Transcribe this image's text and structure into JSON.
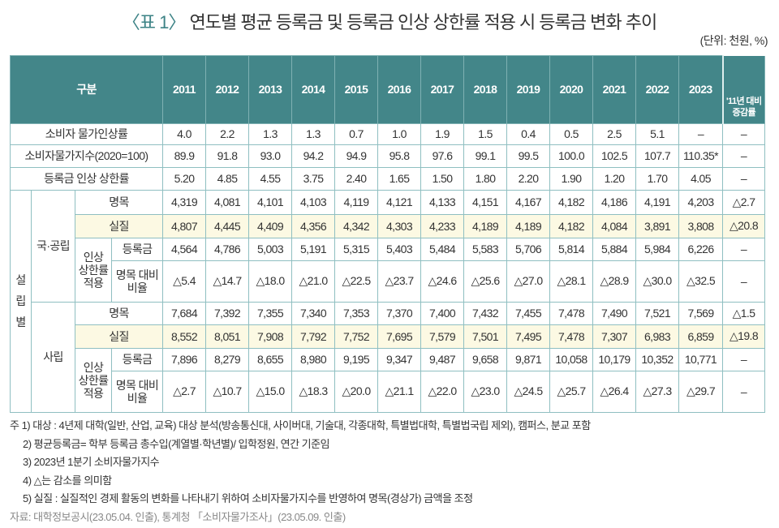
{
  "title": {
    "prefix": "〈표 1〉",
    "text": "연도별 평균 등록금 및 등록금 인상 상한률 적용 시 등록금 변화 추이"
  },
  "unit": "(단위: 천원, %)",
  "header": {
    "group": "구분",
    "years": [
      "2011",
      "2012",
      "2013",
      "2014",
      "2015",
      "2016",
      "2017",
      "2018",
      "2019",
      "2020",
      "2021",
      "2022",
      "2023"
    ],
    "change_line1": "'11년 대비",
    "change_line2": "증감률"
  },
  "top_rows": [
    {
      "label": "소비자 물가인상률",
      "values": [
        "4.0",
        "2.2",
        "1.3",
        "1.3",
        "0.7",
        "1.0",
        "1.9",
        "1.5",
        "0.4",
        "0.5",
        "2.5",
        "5.1",
        "–"
      ],
      "change": "–"
    },
    {
      "label": "소비자물가지수(2020=100)",
      "values": [
        "89.9",
        "91.8",
        "93.0",
        "94.2",
        "94.9",
        "95.8",
        "97.6",
        "99.1",
        "99.5",
        "100.0",
        "102.5",
        "107.7",
        "110.35*"
      ],
      "change": "–"
    },
    {
      "label": "등록금 인상 상한률",
      "values": [
        "5.20",
        "4.85",
        "4.55",
        "3.75",
        "2.40",
        "1.65",
        "1.50",
        "1.80",
        "2.20",
        "1.90",
        "1.20",
        "1.70",
        "4.05"
      ],
      "change": "–"
    }
  ],
  "group_label": [
    "설",
    "립",
    "별"
  ],
  "sub_labels": {
    "nominal": "명목",
    "real": "실질",
    "cap": [
      "인상",
      "상한률",
      "적용"
    ],
    "tuition": "등록금",
    "ratio": [
      "명목 대비",
      "비율"
    ]
  },
  "sections": [
    {
      "name": "국·공립",
      "nominal": {
        "values": [
          "4,319",
          "4,081",
          "4,101",
          "4,103",
          "4,119",
          "4,121",
          "4,133",
          "4,151",
          "4,167",
          "4,182",
          "4,186",
          "4,191",
          "4,203"
        ],
        "change": "△2.7"
      },
      "real": {
        "values": [
          "4,807",
          "4,445",
          "4,409",
          "4,356",
          "4,342",
          "4,303",
          "4,233",
          "4,189",
          "4,189",
          "4,182",
          "4,084",
          "3,891",
          "3,808"
        ],
        "change": "△20.8"
      },
      "tuition": {
        "values": [
          "4,564",
          "4,786",
          "5,003",
          "5,191",
          "5,315",
          "5,403",
          "5,484",
          "5,583",
          "5,706",
          "5,814",
          "5,884",
          "5,984",
          "6,226"
        ],
        "change": "–"
      },
      "ratio": {
        "values": [
          "△5.4",
          "△14.7",
          "△18.0",
          "△21.0",
          "△22.5",
          "△23.7",
          "△24.6",
          "△25.6",
          "△27.0",
          "△28.1",
          "△28.9",
          "△30.0",
          "△32.5"
        ],
        "change": "–"
      }
    },
    {
      "name": "사립",
      "nominal": {
        "values": [
          "7,684",
          "7,392",
          "7,355",
          "7,340",
          "7,353",
          "7,370",
          "7,400",
          "7,432",
          "7,455",
          "7,478",
          "7,490",
          "7,521",
          "7,569"
        ],
        "change": "△1.5"
      },
      "real": {
        "values": [
          "8,552",
          "8,051",
          "7,908",
          "7,792",
          "7,752",
          "7,695",
          "7,579",
          "7,501",
          "7,495",
          "7,478",
          "7,307",
          "6,983",
          "6,859"
        ],
        "change": "△19.8"
      },
      "tuition": {
        "values": [
          "7,896",
          "8,279",
          "8,655",
          "8,980",
          "9,195",
          "9,347",
          "9,487",
          "9,658",
          "9,871",
          "10,058",
          "10,179",
          "10,352",
          "10,771"
        ],
        "change": "–"
      },
      "ratio": {
        "values": [
          "△2.7",
          "△10.7",
          "△15.0",
          "△18.3",
          "△20.0",
          "△21.1",
          "△22.0",
          "△23.0",
          "△24.5",
          "△25.7",
          "△26.4",
          "△27.3",
          "△29.7"
        ],
        "change": "–"
      }
    }
  ],
  "notes": [
    "주 1) 대상 : 4년제 대학(일반, 산업, 교육) 대상 분석(방송통신대, 사이버대, 기술대, 각종대학, 특별법대학, 특별법국립 제외), 캠퍼스, 분교 포함",
    "2) 평균등록금= 학부 등록금 총수입(계열별·학년별)/ 입학정원, 연간 기준임",
    "3) 2023년 1분기 소비자물가지수",
    "4) △는 감소를 의미함",
    "5) 실질 : 실질적인 경제 활동의 변화를 나타내기 위하여 소비자물가지수를 반영하여 명목(경상가) 금액을 조정"
  ],
  "source": "자료: 대학정보공시(23.05.04. 인출), 통계청 「소비자물가조사」(23.05.09. 인출)"
}
